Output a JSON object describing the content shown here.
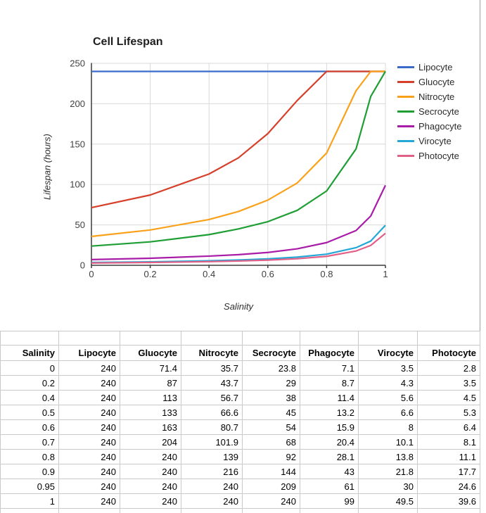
{
  "chart": {
    "title": "Cell Lifespan",
    "x_axis_title": "Salinity",
    "y_axis_title": "Lifespan (hours)"
  },
  "chart_data": {
    "type": "line",
    "title": "Cell Lifespan",
    "xlabel": "Salinity",
    "ylabel": "Lifespan (hours)",
    "xlim": [
      0,
      1
    ],
    "ylim": [
      0,
      250
    ],
    "x_ticks": [
      0,
      0.2,
      0.4,
      0.6,
      0.8,
      1
    ],
    "y_ticks": [
      0,
      50,
      100,
      150,
      200,
      250
    ],
    "grid": true,
    "legend_position": "right",
    "x": [
      0,
      0.2,
      0.4,
      0.5,
      0.6,
      0.7,
      0.8,
      0.9,
      0.95,
      1
    ],
    "series": [
      {
        "name": "Lipocyte",
        "color": "#3a6bc9",
        "values": [
          240,
          240,
          240,
          240,
          240,
          240,
          240,
          240,
          240,
          240
        ]
      },
      {
        "name": "Gluocyte",
        "color": "#d6402a",
        "values": [
          71.4,
          87,
          113,
          133,
          163,
          204,
          240,
          240,
          240,
          240
        ]
      },
      {
        "name": "Nitrocyte",
        "color": "#f9a11b",
        "values": [
          35.7,
          43.7,
          56.7,
          66.6,
          80.7,
          101.9,
          139,
          216,
          240,
          240
        ]
      },
      {
        "name": "Secrocyte",
        "color": "#1e9e34",
        "values": [
          23.8,
          29,
          38,
          45,
          54,
          68,
          92,
          144,
          209,
          240
        ]
      },
      {
        "name": "Phagocyte",
        "color": "#a81ca8",
        "values": [
          7.1,
          8.7,
          11.4,
          13.2,
          15.9,
          20.4,
          28.1,
          43,
          61,
          99
        ]
      },
      {
        "name": "Virocyte",
        "color": "#24a7d4",
        "values": [
          3.5,
          4.3,
          5.6,
          6.6,
          8,
          10.1,
          13.8,
          21.8,
          30,
          49.5
        ]
      },
      {
        "name": "Photocyte",
        "color": "#e26086",
        "values": [
          2.8,
          3.5,
          4.5,
          5.3,
          6.4,
          8.1,
          11.1,
          17.7,
          24.6,
          39.6
        ]
      }
    ]
  },
  "table": {
    "columns": [
      "Salinity",
      "Lipocyte",
      "Gluocyte",
      "Nitrocyte",
      "Secrocyte",
      "Phagocyte",
      "Virocyte",
      "Photocyte"
    ],
    "rows": [
      [
        "0",
        "240",
        "71.4",
        "35.7",
        "23.8",
        "7.1",
        "3.5",
        "2.8"
      ],
      [
        "0.2",
        "240",
        "87",
        "43.7",
        "29",
        "8.7",
        "4.3",
        "3.5"
      ],
      [
        "0.4",
        "240",
        "113",
        "56.7",
        "38",
        "11.4",
        "5.6",
        "4.5"
      ],
      [
        "0.5",
        "240",
        "133",
        "66.6",
        "45",
        "13.2",
        "6.6",
        "5.3"
      ],
      [
        "0.6",
        "240",
        "163",
        "80.7",
        "54",
        "15.9",
        "8",
        "6.4"
      ],
      [
        "0.7",
        "240",
        "204",
        "101.9",
        "68",
        "20.4",
        "10.1",
        "8.1"
      ],
      [
        "0.8",
        "240",
        "240",
        "139",
        "92",
        "28.1",
        "13.8",
        "11.1"
      ],
      [
        "0.9",
        "240",
        "240",
        "216",
        "144",
        "43",
        "21.8",
        "17.7"
      ],
      [
        "0.95",
        "240",
        "240",
        "240",
        "209",
        "61",
        "30",
        "24.6"
      ],
      [
        "1",
        "240",
        "240",
        "240",
        "240",
        "99",
        "49.5",
        "39.6"
      ]
    ]
  },
  "colors": {
    "chart_gridline": "#d9d9d9",
    "chart_axis": "#3c3c3c",
    "table_gridline": "#c9c9c9",
    "sheet_border": "#a0a0a0",
    "title_text": "#1e1e1e",
    "tick_text": "#3f3f3f"
  }
}
